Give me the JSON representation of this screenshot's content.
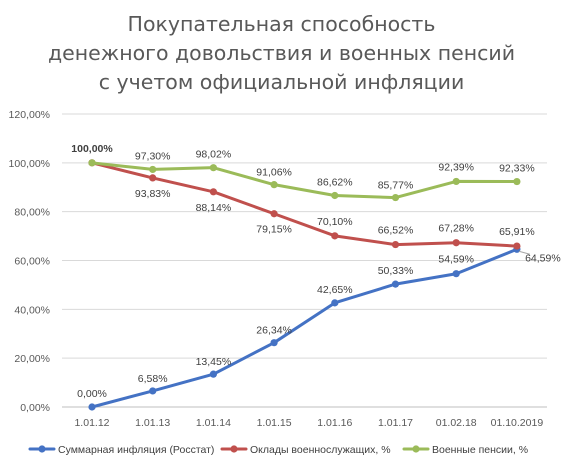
{
  "chart_data": {
    "type": "line",
    "title_lines": [
      "Покупательная способность",
      "денежного довольствия и военных пенсий",
      "с учетом официальной инфляции"
    ],
    "categories": [
      "1.01.12",
      "1.01.13",
      "1.01.14",
      "1.01.15",
      "1.01.16",
      "1.01.17",
      "01.02.18",
      "01.10.2019"
    ],
    "y_ticks": [
      "0,00%",
      "20,00%",
      "40,00%",
      "60,00%",
      "80,00%",
      "100,00%",
      "120,00%"
    ],
    "ylim": [
      0,
      120
    ],
    "grid": true,
    "legend_position": "bottom",
    "series": [
      {
        "name": "Суммарная инфляция (Росстат)",
        "color": "#4472c4",
        "values": [
          0.0,
          6.58,
          13.45,
          26.34,
          42.65,
          50.33,
          54.59,
          64.59
        ],
        "labels": [
          "0,00%",
          "6,58%",
          "13,45%",
          "26,34%",
          "42,65%",
          "50,33%",
          "54,59%",
          "64,59%"
        ]
      },
      {
        "name": "Оклады военнослужащих, %",
        "color": "#c0504d",
        "values": [
          100.0,
          93.83,
          88.14,
          79.15,
          70.1,
          66.52,
          67.28,
          65.91
        ],
        "labels": [
          "100,00%",
          "93,83%",
          "88,14%",
          "79,15%",
          "70,10%",
          "66,52%",
          "67,28%",
          "65,91%"
        ]
      },
      {
        "name": "Военные пенсии, %",
        "color": "#9bbb59",
        "values": [
          100.0,
          97.3,
          98.02,
          91.06,
          86.62,
          85.77,
          92.39,
          92.33
        ],
        "labels": [
          "",
          "97,30%",
          "98,02%",
          "91,06%",
          "86,62%",
          "85,77%",
          "92,39%",
          "92,33%"
        ]
      }
    ]
  }
}
